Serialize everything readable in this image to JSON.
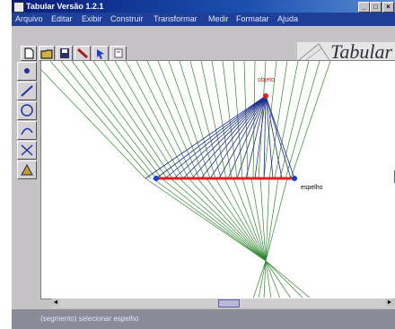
{
  "window": {
    "title": "Tabular Versão 1.2.1"
  },
  "menu": [
    "Arquivo",
    "Editar",
    "Exibir",
    "Construir",
    "Transformar",
    "Medir",
    "Formatar",
    "Ajuda"
  ],
  "brand": "Tabular",
  "canvas": {
    "label_top": "objeto",
    "label_mirror": "espelho"
  },
  "status": {
    "text": "(segmento) selecionar espelho"
  },
  "colors": {
    "titlebar": "#1a3f9f",
    "fan_green": "#1c7a1c",
    "fan_blue": "#1f2f90",
    "mirror_red": "#e02020",
    "point_blue": "#1040d0"
  },
  "icons": {
    "toolbar": [
      "new-file-icon",
      "open-folder-icon",
      "save-disk-icon",
      "tool-arrow-icon",
      "pointer-icon",
      "page-icon"
    ],
    "left": [
      "point-icon",
      "segment-icon",
      "circle-icon",
      "curve-icon",
      "mirror-icon",
      "triangle-icon"
    ]
  }
}
